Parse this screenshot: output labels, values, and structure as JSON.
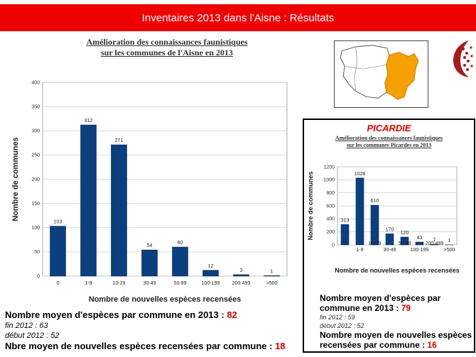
{
  "banner": {
    "title": "Inventaires 2013 dans l'Aisne : Résultats"
  },
  "chart_data": [
    {
      "type": "bar",
      "title": "Amélioration des connaissances faunistiques sur les communes de l'Aisne en 2013",
      "title_lines": [
        "Amélioration des connaissances faunistiques",
        "sur les communes de l'Aisne en 2013"
      ],
      "xlabel": "Nombre de nouvelles espèces recensées",
      "ylabel": "Nombre de communes",
      "categories": [
        "0",
        "1-9",
        "10-29",
        "30-49",
        "50-99",
        "100-199",
        "200-499",
        ">500"
      ],
      "values": [
        103,
        312,
        271,
        54,
        60,
        12,
        3,
        1
      ],
      "ylim": [
        0,
        400
      ],
      "yticks": [
        "0",
        "50",
        "100",
        "150",
        "200",
        "250",
        "300",
        "350",
        "400"
      ],
      "grid": true,
      "bar_color": "#0b3f7e"
    },
    {
      "type": "bar",
      "header": "PICARDIE",
      "title": "Amélioration des connaissances faunistiques sur les communes Picardes en 2013",
      "title_lines": [
        "Amélioration des connaissances faunistiques",
        "sur les communes Picardes en 2013"
      ],
      "xlabel": "Nombre de nouvelles espèces recensées",
      "ylabel": "Nombre de communes",
      "categories": [
        "0",
        "1-9",
        "10-29",
        "30-49",
        "50-99",
        "100-199",
        "200-499",
        ">500"
      ],
      "values": [
        313,
        1028,
        610,
        170,
        120,
        43,
        7,
        1
      ],
      "ylim": [
        0,
        1200
      ],
      "yticks": [
        "0",
        "200",
        "400",
        "600",
        "800",
        "1000",
        "1200"
      ],
      "grid": true,
      "bar_color": "#0b3f7e"
    }
  ],
  "aisne_stats": {
    "mean_label": "Nombre moyen d'espèces par commune en 2013 : ",
    "mean_value": "82",
    "end_2012": "fin 2012 : 63",
    "start_2012": "début 2012 : 52",
    "new_label": "Nbre moyen de nouvelles espèces recensées par commune : ",
    "new_value": "18"
  },
  "picardie_stats": {
    "mean_label": "Nombre moyen d'espèces par commune en 2013 : ",
    "mean_value": "79",
    "end_2012": "fin 2012 : 59",
    "start_2012": "début 2012 : 52",
    "new_label": "Nombre moyen de nouvelles espèces recensées par commune : ",
    "new_value": "16"
  },
  "colors": {
    "banner": "#ee0000",
    "bars": "#0b3f7e",
    "highlight": "#f5a000",
    "value": "#cc0000"
  }
}
